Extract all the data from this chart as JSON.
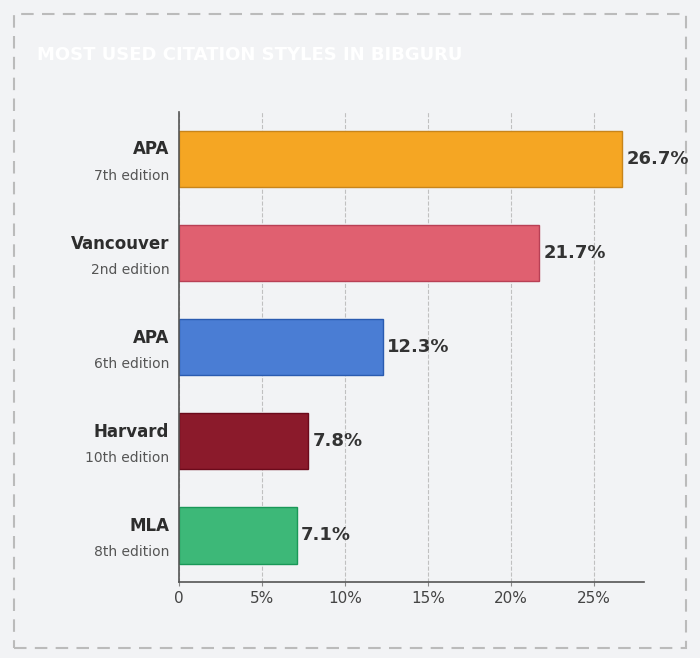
{
  "title": "MOST USED CITATION STYLES IN BIBGURU",
  "title_bg_color": "#5B9BD5",
  "title_text_color": "#FFFFFF",
  "background_color": "#F2F3F5",
  "categories_line1": [
    "APA",
    "Vancouver",
    "APA",
    "Harvard",
    "MLA"
  ],
  "categories_line2": [
    "7th edition",
    "2nd edition",
    "6th edition",
    "10th edition",
    "8th edition"
  ],
  "values": [
    26.7,
    21.7,
    12.3,
    7.8,
    7.1
  ],
  "labels": [
    "26.7%",
    "21.7%",
    "12.3%",
    "7.8%",
    "7.1%"
  ],
  "bar_colors": [
    "#F5A623",
    "#E06070",
    "#4A7DD4",
    "#8B1A2B",
    "#3DB878"
  ],
  "bar_edge_colors": [
    "#C8851A",
    "#B84055",
    "#2A5BB0",
    "#6B0A1B",
    "#1A9858"
  ],
  "xlim": [
    0,
    28
  ],
  "xticks": [
    0,
    5,
    10,
    15,
    20,
    25
  ],
  "xtick_labels": [
    "0",
    "5%",
    "10%",
    "15%",
    "20%",
    "25%"
  ],
  "grid_color": "#BBBBBB",
  "axis_line_color": "#555555",
  "cat_name_fontsize": 12,
  "cat_sub_fontsize": 10,
  "value_fontsize": 13,
  "title_fontsize": 13,
  "border_color": "#BBBBBB"
}
